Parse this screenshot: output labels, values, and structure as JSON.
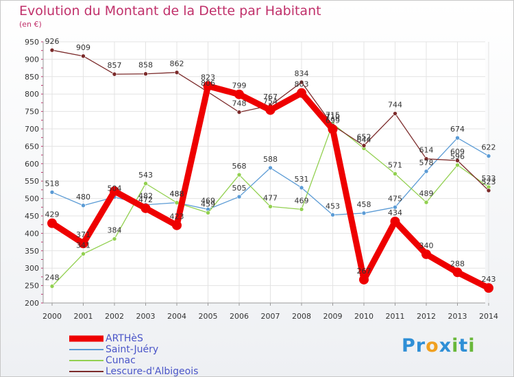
{
  "title": "Evolution du Montant de la Dette par Habitant",
  "subtitle": "(en €)",
  "logo": {
    "text": "Proxiti",
    "letters": [
      {
        "ch": "P",
        "color": "#2f8fd6"
      },
      {
        "ch": "r",
        "color": "#2f8fd6"
      },
      {
        "ch": "o",
        "color": "#f0a020"
      },
      {
        "ch": "x",
        "color": "#2f8fd6"
      },
      {
        "ch": "i",
        "color": "#69b83a"
      },
      {
        "ch": "t",
        "color": "#2f8fd6"
      },
      {
        "ch": "i",
        "color": "#69b83a"
      }
    ]
  },
  "chart_data": {
    "type": "line",
    "x": [
      "2000",
      "2001",
      "2002",
      "2003",
      "2004",
      "2005",
      "2006",
      "2007",
      "2008",
      "2009",
      "2010",
      "2011",
      "2012",
      "2013",
      "2014"
    ],
    "ylim": [
      200,
      950
    ],
    "yticks": [
      200,
      250,
      300,
      350,
      400,
      450,
      500,
      550,
      600,
      650,
      700,
      750,
      800,
      850,
      900,
      950
    ],
    "grid": true,
    "legend_position": "bottom-left",
    "series": [
      {
        "name": "Saint-Juéry",
        "color": "#5b9bd5",
        "values": [
          518,
          480,
          504,
          482,
          488,
          469,
          505,
          588,
          531,
          453,
          458,
          475,
          578,
          674,
          622
        ],
        "labels": [
          "518",
          "480",
          "504",
          "482",
          "488",
          "469",
          "505",
          "588",
          "531",
          "453",
          "458",
          "475",
          "578",
          "674",
          "622"
        ]
      },
      {
        "name": "Cunac",
        "color": "#92d050",
        "values": [
          248,
          341,
          384,
          543,
          488,
          459,
          568,
          477,
          469,
          715,
          644,
          571,
          489,
          596,
          533
        ],
        "labels": [
          "248",
          "341",
          "384",
          "543",
          "488",
          "459",
          "568",
          "477",
          "469",
          "715",
          "644",
          "571",
          "489",
          "596",
          "533"
        ]
      },
      {
        "name": "Lescure-d'Albigeois",
        "color": "#7b2a2a",
        "values": [
          926,
          909,
          857,
          858,
          862,
          806,
          748,
          767,
          834,
          710,
          652,
          744,
          614,
          609,
          523
        ],
        "labels": [
          "926",
          "909",
          "857",
          "858",
          "862",
          "806",
          "748",
          "767",
          "834",
          "710",
          "652",
          "744",
          "614",
          "609",
          "523"
        ]
      },
      {
        "name": "ARTHèS",
        "color": "#ee0000",
        "values": [
          429,
          371,
          521,
          472,
          423,
          823,
          799,
          754,
          803,
          699,
          267,
          434,
          340,
          288,
          243
        ],
        "labels": [
          "429",
          "371",
          "",
          "472",
          "423",
          "823",
          "799",
          "754",
          "803",
          "699",
          "267",
          "434",
          "340",
          "288",
          "243"
        ]
      }
    ]
  }
}
